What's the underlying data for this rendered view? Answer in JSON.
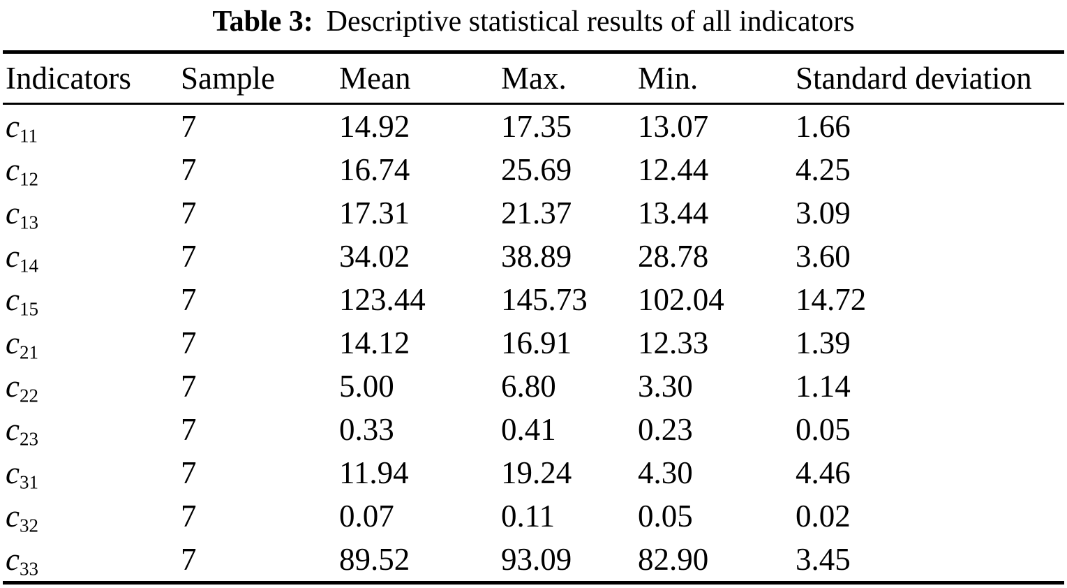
{
  "caption": {
    "label": "Table 3:",
    "text": "Descriptive statistical results of all indicators"
  },
  "colors": {
    "text": "#000000",
    "background": "#ffffff",
    "rule": "#000000"
  },
  "table": {
    "columns": [
      "Indicators",
      "Sample",
      "Mean",
      "Max.",
      "Min.",
      "Standard deviation"
    ],
    "rows": [
      {
        "base": "c",
        "sub": "11",
        "sample": "7",
        "mean": "14.92",
        "max": "17.35",
        "min": "13.07",
        "std": "1.66"
      },
      {
        "base": "c",
        "sub": "12",
        "sample": "7",
        "mean": "16.74",
        "max": "25.69",
        "min": "12.44",
        "std": "4.25"
      },
      {
        "base": "c",
        "sub": "13",
        "sample": "7",
        "mean": "17.31",
        "max": "21.37",
        "min": "13.44",
        "std": "3.09"
      },
      {
        "base": "c",
        "sub": "14",
        "sample": "7",
        "mean": "34.02",
        "max": "38.89",
        "min": "28.78",
        "std": "3.60"
      },
      {
        "base": "c",
        "sub": "15",
        "sample": "7",
        "mean": "123.44",
        "max": "145.73",
        "min": "102.04",
        "std": "14.72"
      },
      {
        "base": "c",
        "sub": "21",
        "sample": "7",
        "mean": "14.12",
        "max": "16.91",
        "min": "12.33",
        "std": "1.39"
      },
      {
        "base": "c",
        "sub": "22",
        "sample": "7",
        "mean": "5.00",
        "max": "6.80",
        "min": "3.30",
        "std": "1.14"
      },
      {
        "base": "c",
        "sub": "23",
        "sample": "7",
        "mean": "0.33",
        "max": "0.41",
        "min": "0.23",
        "std": "0.05"
      },
      {
        "base": "c",
        "sub": "31",
        "sample": "7",
        "mean": "11.94",
        "max": "19.24",
        "min": "4.30",
        "std": "4.46"
      },
      {
        "base": "c",
        "sub": "32",
        "sample": "7",
        "mean": "0.07",
        "max": "0.11",
        "min": "0.05",
        "std": "0.02"
      },
      {
        "base": "c",
        "sub": "33",
        "sample": "7",
        "mean": "89.52",
        "max": "93.09",
        "min": "82.90",
        "std": "3.45"
      }
    ]
  }
}
